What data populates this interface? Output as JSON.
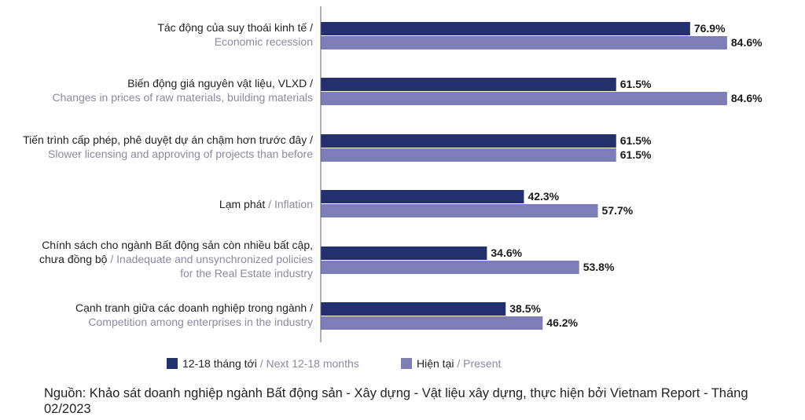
{
  "chart_data": {
    "type": "bar",
    "orientation": "horizontal",
    "categories": [
      {
        "vi": [
          "Tác động của suy thoái kinh tế /"
        ],
        "en": [
          "Economic recession"
        ]
      },
      {
        "vi": [
          "Biến động giá nguyên vật liệu, VLXD /"
        ],
        "en": [
          "Changes in prices of raw materials, building materials"
        ]
      },
      {
        "vi": [
          "Tiến trình cấp phép, phê duyệt dự án chậm hơn trước đây /"
        ],
        "en": [
          "Slower licensing and approving of projects than before"
        ]
      },
      {
        "vi": [
          "Lạm phát"
        ],
        "en": [
          "/ Inflation"
        ]
      },
      {
        "vi": [
          "Chính sách cho ngành Bất động sản còn nhiều bất cập,",
          "chưa đồng bộ"
        ],
        "en": [
          "/ Inadequate and unsynchronized policies",
          "for the Real Estate industry"
        ]
      },
      {
        "vi": [
          "Cạnh tranh giữa các doanh nghiệp trong ngành /"
        ],
        "en": [
          "Competition among enterprises in the industry"
        ]
      }
    ],
    "series": [
      {
        "name_vi": "12-18 tháng tới",
        "name_en": "/ Next 12-18 months",
        "color": "#24306e",
        "values": [
          76.9,
          61.5,
          61.5,
          42.3,
          34.6,
          38.5
        ],
        "labels": [
          "76.9%",
          "61.5%",
          "61.5%",
          "42.3%",
          "34.6%",
          "38.5%"
        ]
      },
      {
        "name_vi": "Hiện tại",
        "name_en": "/ Present",
        "color": "#7d7eb8",
        "values": [
          84.6,
          84.6,
          61.5,
          57.7,
          53.8,
          46.2
        ],
        "labels": [
          "84.6%",
          "84.6%",
          "61.5%",
          "57.7%",
          "53.8%",
          "46.2%"
        ]
      }
    ],
    "xlim": [
      0,
      100
    ],
    "legend": "bottom",
    "grid": false
  },
  "source": "Nguồn: Khảo sát doanh nghiệp ngành Bất động sản - Xây dựng - Vật liệu xây dựng, thực hiện bởi Vietnam Report - Tháng 02/2023"
}
